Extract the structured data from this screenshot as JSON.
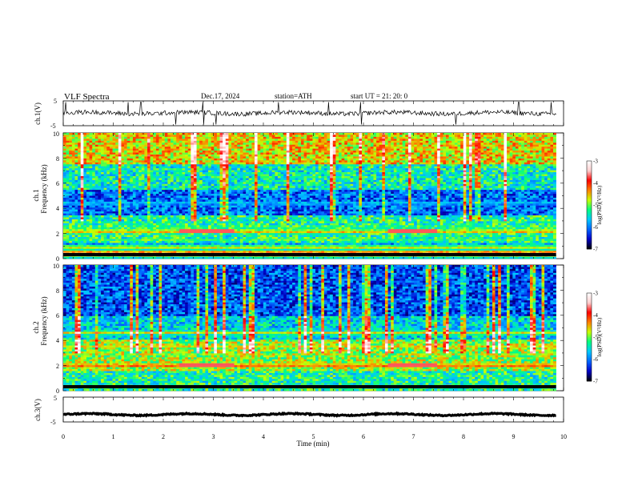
{
  "header": {
    "title": "VLF  Spectra",
    "date": "Dec.17, 2024",
    "station": "station=ATH",
    "start": "start  UT  =    21: 20: 0"
  },
  "chart_data": [
    {
      "type": "line",
      "name": "ch1-waveform",
      "ylabel": "ch.1(V)",
      "ylim": [
        -5,
        5
      ],
      "yticks": [
        "5",
        "-5"
      ],
      "xlim": [
        0,
        10
      ],
      "line_color": "#000000",
      "mean_value": 0.1,
      "noise_amplitude": 0.9,
      "spike_times_min": [
        0.05,
        1.3,
        1.55,
        2.25,
        2.8,
        3.05,
        4.3,
        5.3,
        5.95,
        7.85,
        9.1,
        9.75
      ]
    },
    {
      "type": "heatmap",
      "name": "ch1-spectrogram",
      "ylabel": "ch.1\nFrequency (kHz)",
      "ylabel_channel": "ch.1",
      "ylabel_axis": "Frequency (kHz)",
      "ylim": [
        0,
        10
      ],
      "yticks": [
        "0",
        "2",
        "4",
        "6",
        "8",
        "10"
      ],
      "xlim": [
        0,
        10
      ],
      "colorbar": {
        "label": "log(PSD)(V²/Hz)",
        "ticks": [
          "-3",
          "-4",
          "-5",
          "-6",
          "-7"
        ],
        "range": [
          -7,
          -3
        ],
        "colors": [
          "#000000",
          "#0000c8",
          "#0064ff",
          "#00c8ff",
          "#00ff80",
          "#c8ff00",
          "#ff8000",
          "#ff0000",
          "#ffd0d0",
          "#ffffff"
        ]
      },
      "bands_khz": [
        {
          "f": 0.4,
          "level": -3.6
        },
        {
          "f": 0.9,
          "level": -4.5
        },
        {
          "f": 1.5,
          "level": -5.2
        },
        {
          "f": 2.15,
          "level": -4.3
        },
        {
          "f": 2.5,
          "level": -4.9
        },
        {
          "f": 3.3,
          "level": -5.5
        },
        {
          "f": 4.4,
          "level": -5.4
        }
      ],
      "tone_segments": [
        {
          "t0": 2.3,
          "t1": 3.4,
          "f": 2.15,
          "level": -3.7
        },
        {
          "t0": 6.5,
          "t1": 7.5,
          "f": 2.15,
          "level": -3.7
        }
      ]
    },
    {
      "type": "heatmap",
      "name": "ch2-spectrogram",
      "ylabel": "ch.2\nFrequency (kHz)",
      "ylabel_channel": "ch.2",
      "ylabel_axis": "Frequency (kHz)",
      "ylim": [
        0,
        10
      ],
      "yticks": [
        "0",
        "2",
        "4",
        "6",
        "8",
        "10"
      ],
      "xlim": [
        0,
        10
      ],
      "colorbar": {
        "label": "log(PSD)(V²/Hz)",
        "ticks": [
          "-3",
          "-4",
          "-5",
          "-6",
          "-7"
        ],
        "range": [
          -7,
          -3
        ]
      },
      "bands_khz": [
        {
          "f": 2.0,
          "level": -4.0
        },
        {
          "f": 2.9,
          "level": -5.0
        },
        {
          "f": 3.5,
          "level": -4.6
        },
        {
          "f": 4.6,
          "level": -4.6
        }
      ],
      "tone_segments": [
        {
          "t0": 2.3,
          "t1": 3.4,
          "f": 2.0,
          "level": -3.7
        },
        {
          "t0": 6.5,
          "t1": 7.5,
          "f": 2.0,
          "level": -3.7
        }
      ]
    },
    {
      "type": "line",
      "name": "ch3-waveform",
      "ylabel": "ch.3(V)",
      "ylim": [
        -5,
        5
      ],
      "yticks": [
        "5",
        "-5"
      ],
      "xlim": [
        0,
        10
      ],
      "line_color": "#000000",
      "mean_value": -2.0,
      "noise_amplitude": 0.25,
      "xlabel": "Time  (min)",
      "xticks": [
        "0",
        "1",
        "2",
        "3",
        "4",
        "5",
        "6",
        "7",
        "8",
        "9",
        "10"
      ]
    }
  ]
}
